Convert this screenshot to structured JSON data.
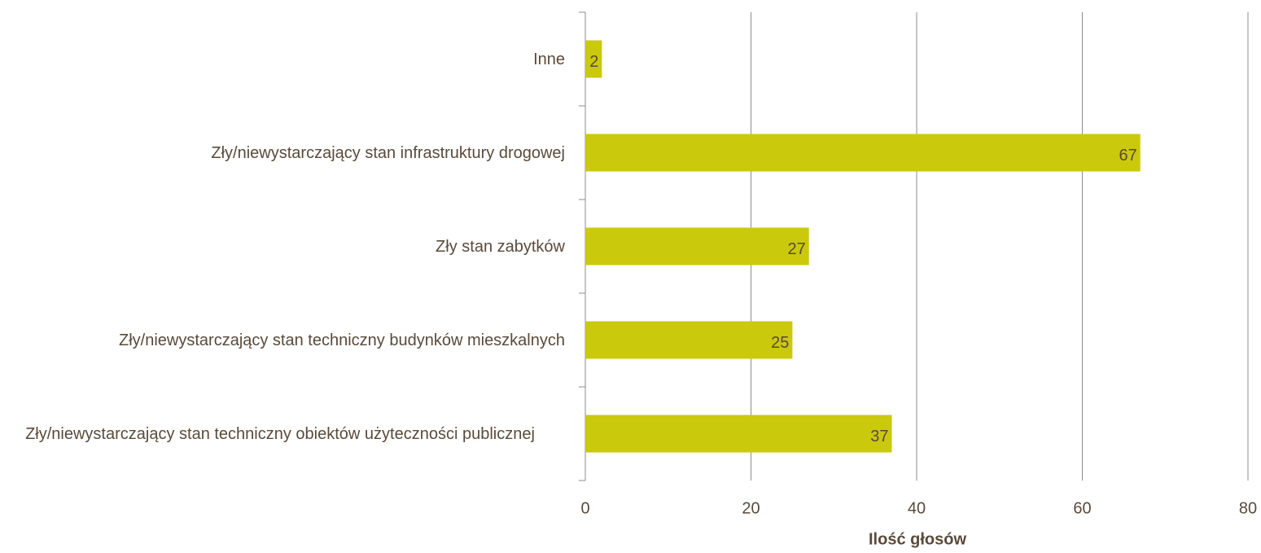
{
  "chart_data": {
    "type": "hbar",
    "x_label": "Ilość głosów",
    "categories": [
      "Inne",
      "Zły/niewystarczający stan infrastruktury drogowej",
      "Zły stan zabytków",
      "Zły/niewystarczający stan techniczny budynków mieszkalnych",
      "Zły/niewystarczający stan techniczny obiektów użyteczności publicznej"
    ],
    "values": [
      2,
      67,
      27,
      25,
      37
    ],
    "color": "#cbc90c",
    "xlim": [
      0,
      80
    ],
    "xticks": [
      0,
      20,
      40,
      60,
      80
    ],
    "grid": true
  }
}
